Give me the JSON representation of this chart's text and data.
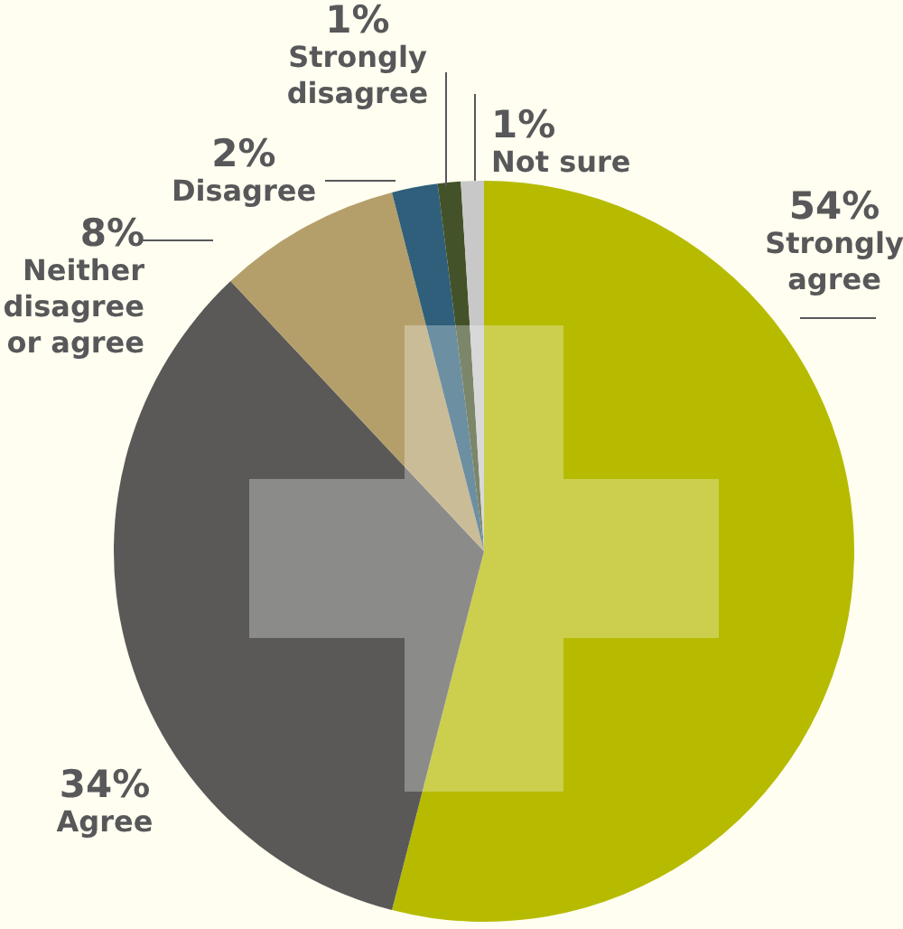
{
  "chart_data": {
    "type": "pie",
    "categories": [
      "Strongly agree",
      "Agree",
      "Neither disagree or agree",
      "Disagree",
      "Strongly disagree",
      "Not sure"
    ],
    "values": [
      54,
      34,
      8,
      2,
      1,
      1
    ],
    "colors": [
      "#b6bb00",
      "#5a5958",
      "#b49f6b",
      "#2f5f7a",
      "#44522a",
      "#c8c8c8"
    ],
    "value_labels": [
      "54%",
      "34%",
      "8%",
      "2%",
      "1%",
      "1%"
    ]
  }
}
